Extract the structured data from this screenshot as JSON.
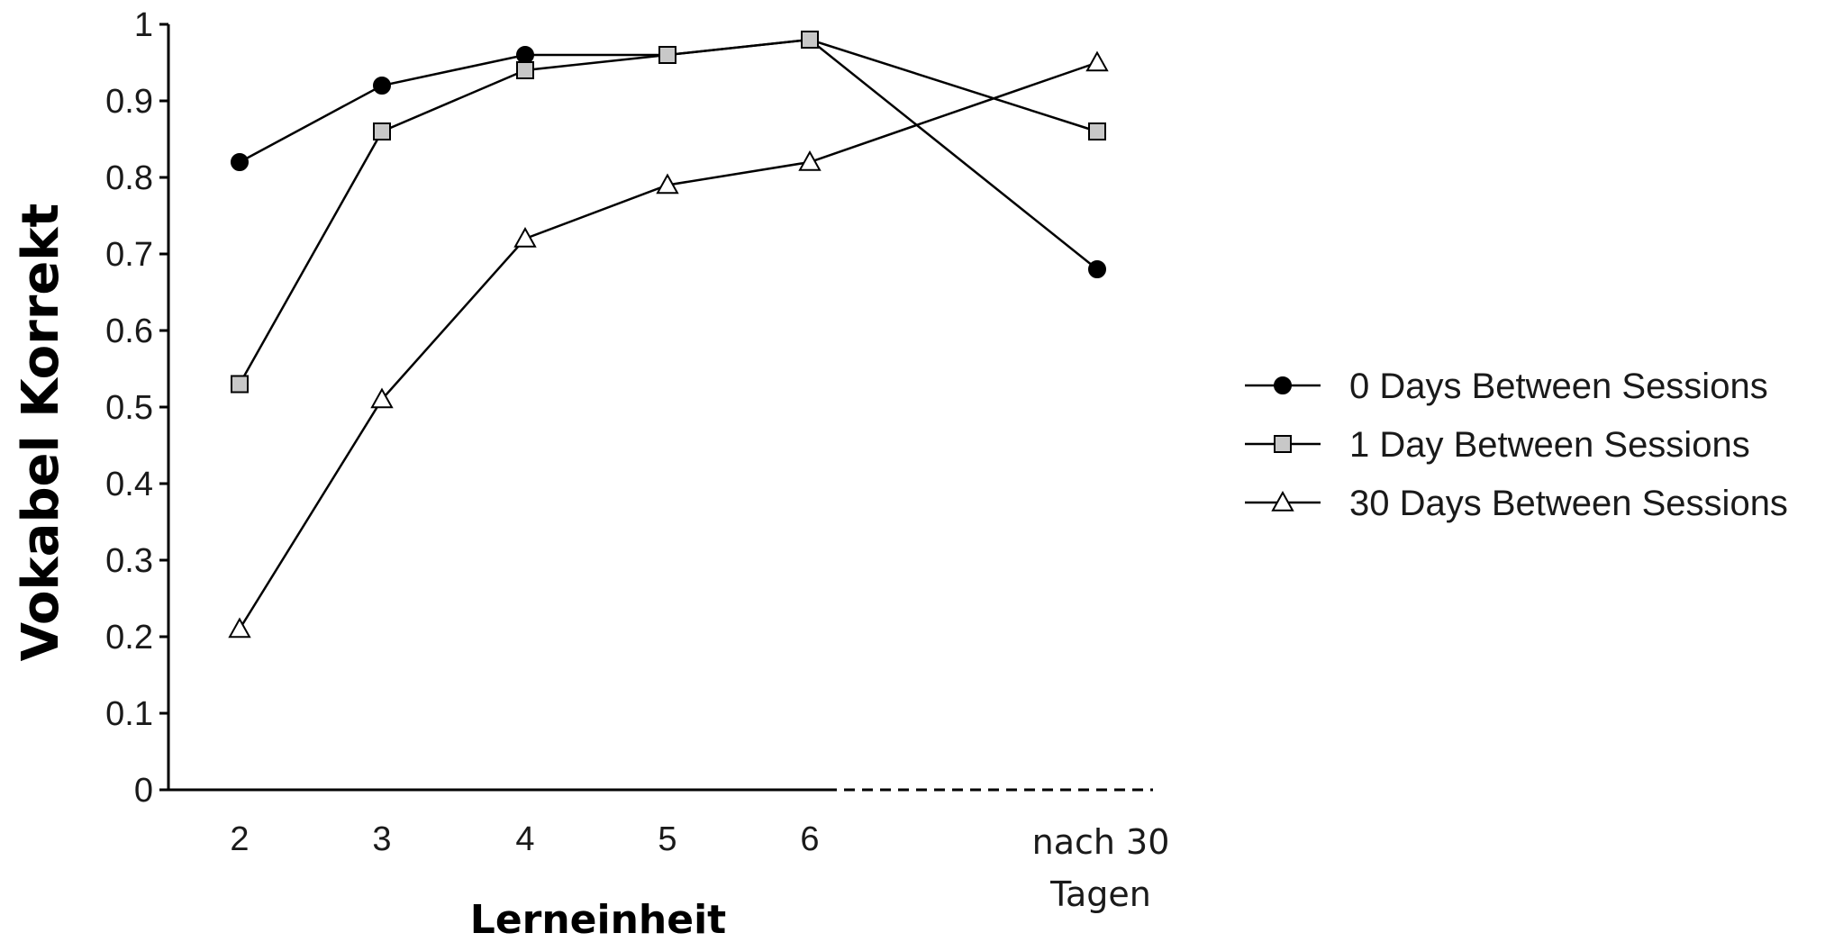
{
  "chart_data": {
    "type": "line",
    "ylabel": "Vokabel Korrekt",
    "xlabel": "Lerneinheit",
    "categories": [
      "2",
      "3",
      "4",
      "5",
      "6",
      "nach 30 Tagen"
    ],
    "last_category_lines": [
      "nach 30",
      "Tagen"
    ],
    "ylim": [
      0,
      1
    ],
    "yticks": [
      "0",
      "0.1",
      "0.2",
      "0.3",
      "0.4",
      "0.5",
      "0.6",
      "0.7",
      "0.8",
      "0.9",
      "1"
    ],
    "grid": false,
    "legend_position": "right",
    "axis_note": "x-axis line is dashed after category 6",
    "series": [
      {
        "name": "0 Days Between Sessions",
        "marker": "circle-filled",
        "color": "#000000",
        "values": [
          0.82,
          0.92,
          0.96,
          0.96,
          0.98,
          0.68
        ]
      },
      {
        "name": "1 Day Between Sessions",
        "marker": "square-gray",
        "color": "#c8c8c8",
        "values": [
          0.53,
          0.86,
          0.94,
          0.96,
          0.98,
          0.86
        ]
      },
      {
        "name": "30 Days Between Sessions",
        "marker": "triangle-open",
        "color": "#ffffff",
        "values": [
          0.21,
          0.51,
          0.72,
          0.79,
          0.82,
          0.95
        ]
      }
    ]
  }
}
